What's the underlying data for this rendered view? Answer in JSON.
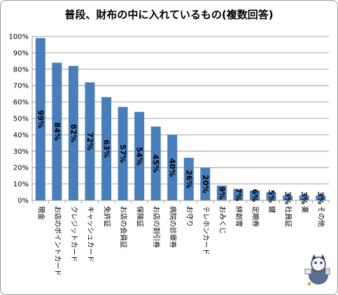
{
  "chart_data": {
    "type": "bar",
    "title": "普段、財布の中に入れているもの(複数回答)",
    "xlabel": "",
    "ylabel": "",
    "ylim": [
      0,
      100
    ],
    "yticks": [
      "0%",
      "10%",
      "20%",
      "30%",
      "40%",
      "50%",
      "60%",
      "70%",
      "80%",
      "90%",
      "100%"
    ],
    "grid": true,
    "bar_color": "#4a7ebb",
    "categories": [
      "現金",
      "お店のポイントカード",
      "クレジットカード",
      "キャッシュカード",
      "免許証",
      "お店の会員証",
      "保険証",
      "お店の割引券",
      "病院の診察券",
      "お守り",
      "テレホンカード",
      "おみくじ",
      "絆創膏",
      "定期券",
      "鍵",
      "社員証",
      "薬",
      "その他"
    ],
    "values": [
      99,
      84,
      82,
      72,
      63,
      57,
      54,
      45,
      40,
      26,
      20,
      9,
      7,
      6,
      5,
      3,
      3,
      3
    ],
    "data_labels": [
      "99%",
      "84%",
      "82%",
      "72%",
      "63%",
      "57%",
      "54%",
      "45%",
      "40%",
      "26%",
      "20%",
      "9%",
      "7%",
      "6%",
      "5%",
      "3%",
      "3%",
      "3%"
    ]
  }
}
